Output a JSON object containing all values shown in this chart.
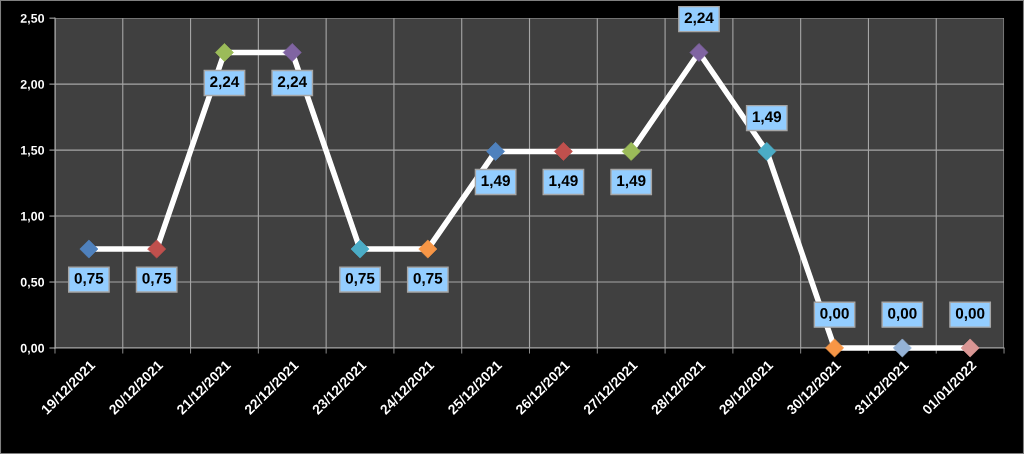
{
  "chart_data": {
    "type": "line",
    "categories": [
      "19/12/2021",
      "20/12/2021",
      "21/12/2021",
      "22/12/2021",
      "23/12/2021",
      "24/12/2021",
      "25/12/2021",
      "26/12/2021",
      "27/12/2021",
      "28/12/2021",
      "29/12/2021",
      "30/12/2021",
      "31/12/2021",
      "01/01/2022"
    ],
    "series": [
      {
        "color": "#ffffff",
        "colors": [
          "#4f81bd",
          "#c0504d",
          "#9bbb59",
          "#8064a2",
          "#4bacc6",
          "#f79646",
          "#4f81bd",
          "#c0504d",
          "#9bbb59",
          "#8064a2",
          "#4bacc6",
          "#f79646",
          "#95b3d7",
          "#d99694"
        ],
        "values": [
          0.75,
          0.75,
          2.24,
          2.24,
          0.75,
          0.75,
          1.49,
          1.49,
          1.49,
          2.24,
          1.49,
          0,
          0,
          0
        ],
        "value_labels": [
          "0,75",
          "0,75",
          "2,24",
          "2,24",
          "0,75",
          "0,75",
          "1,49",
          "1,49",
          "1,49",
          "2,24",
          "1,49",
          "0,00",
          "0,00",
          "0,00"
        ]
      }
    ],
    "ylim": [
      0,
      2.5
    ],
    "yticks": [
      {
        "value": 0,
        "label": "0,00"
      },
      {
        "value": 0.5,
        "label": "0,50"
      },
      {
        "value": 1,
        "label": "1,00"
      },
      {
        "value": 1.5,
        "label": "1,50"
      },
      {
        "value": 2,
        "label": "2,00"
      },
      {
        "value": 2.5,
        "label": "2,50"
      }
    ],
    "grid": true,
    "marker": "diamond",
    "line_style": "solid"
  }
}
